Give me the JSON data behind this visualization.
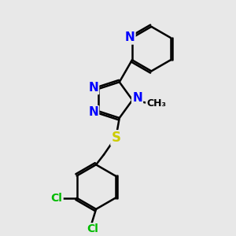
{
  "background_color": "#e8e8e8",
  "atom_colors": {
    "N": "#0000ff",
    "S": "#cccc00",
    "Cl": "#00bb00",
    "C": "#000000"
  },
  "bond_color": "#000000",
  "bond_width": 1.8,
  "font_size": 11
}
